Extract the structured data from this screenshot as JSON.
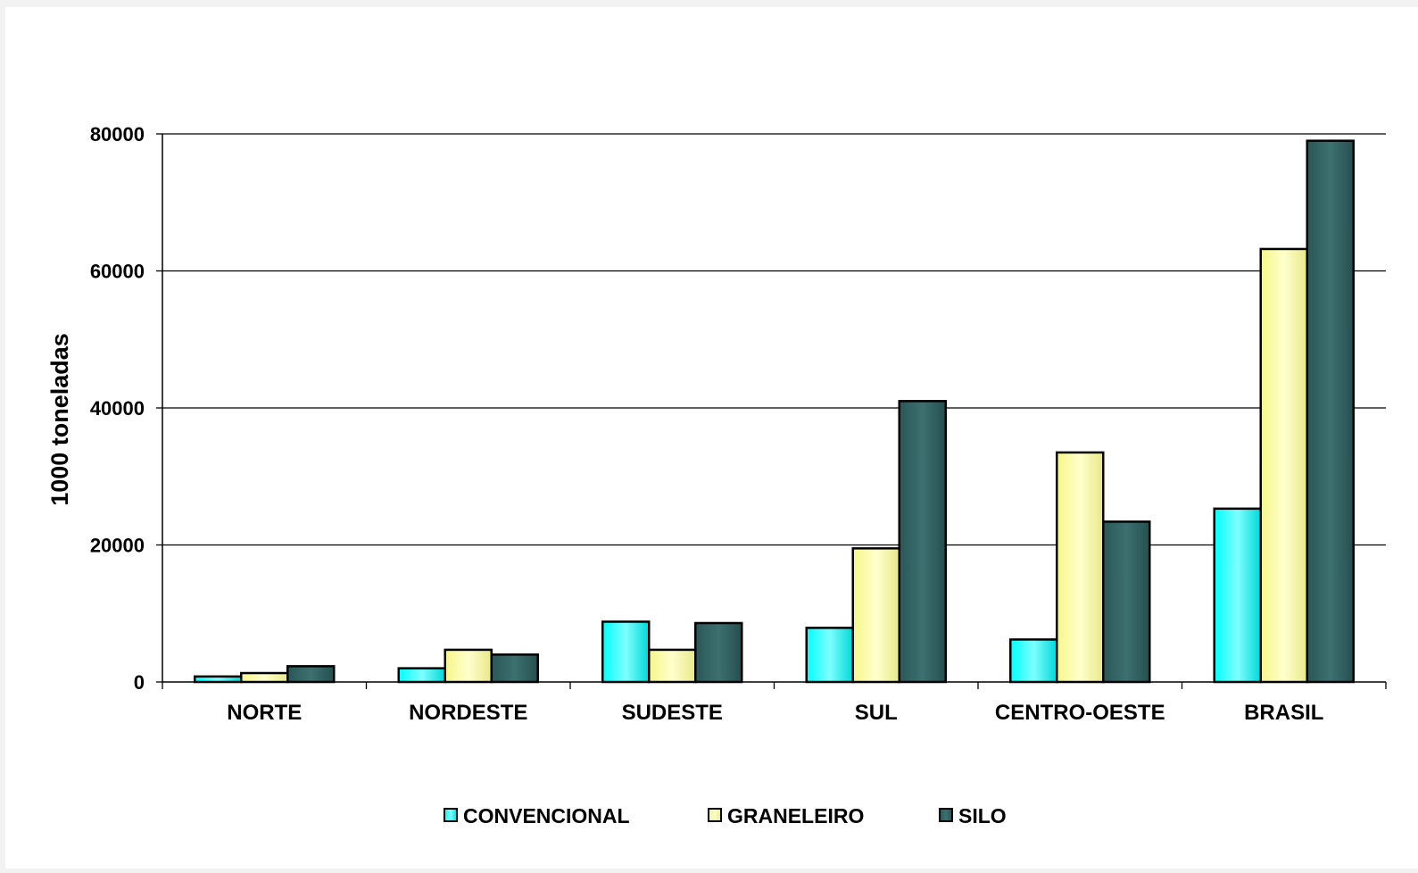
{
  "chart_data": {
    "type": "bar",
    "title": "",
    "xlabel": "",
    "ylabel": "1000 toneladas",
    "ylim": [
      0,
      80000
    ],
    "yticks": [
      0,
      20000,
      40000,
      60000,
      80000
    ],
    "ytick_labels": [
      "0",
      "20000",
      "40000",
      "60000",
      "80000"
    ],
    "grid": true,
    "legend_position": "bottom",
    "categories": [
      "NORTE",
      "NORDESTE",
      "SUDESTE",
      "SUL",
      "CENTRO-OESTE",
      "BRASIL"
    ],
    "series": [
      {
        "name": "CONVENCIONAL",
        "color": "#00ffff",
        "values": [
          800,
          2000,
          8800,
          7900,
          6200,
          25300
        ]
      },
      {
        "name": "GRANELEIRO",
        "color": "#ffff99",
        "values": [
          1300,
          4700,
          4700,
          19500,
          33500,
          63200
        ]
      },
      {
        "name": "SILO",
        "color": "#336666",
        "values": [
          2300,
          4000,
          8600,
          41000,
          23400,
          79000
        ]
      }
    ]
  }
}
